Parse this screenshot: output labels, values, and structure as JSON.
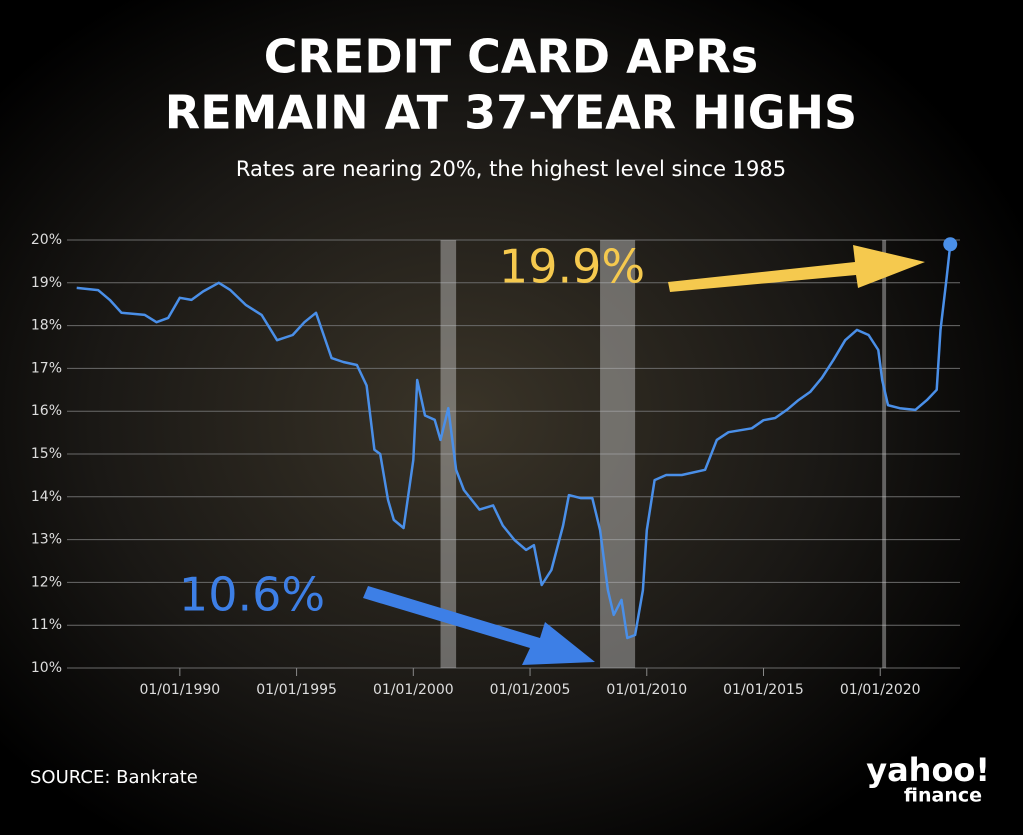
{
  "chart_data": {
    "type": "line",
    "title": [
      "CREDIT CARD APRs",
      "REMAIN AT 37-YEAR HIGHS"
    ],
    "subtitle": "Rates are nearing 20%, the highest level since 1985",
    "source": "SOURCE: Bankrate",
    "logo": [
      "yahoo!",
      "finance"
    ],
    "annotations": [
      {
        "text": "19.9%",
        "color": "#f5c94e"
      },
      {
        "text": "10.6%",
        "color": "#3d7fe6"
      }
    ],
    "x": [
      "1985-08-01",
      "1986-07-01",
      "1987-01-01",
      "1987-07-01",
      "1988-07-01",
      "1989-01-01",
      "1989-07-01",
      "1990-01-01",
      "1990-07-01",
      "1991-01-01",
      "1991-09-01",
      "1992-03-01",
      "1992-11-01",
      "1993-07-01",
      "1994-03-01",
      "1994-11-01",
      "1995-05-01",
      "1995-11-01",
      "1996-02-01",
      "1996-07-01",
      "1997-01-01",
      "1997-08-01",
      "1998-01-01",
      "1998-05-01",
      "1998-08-01",
      "1998-12-01",
      "1999-03-01",
      "1999-08-01",
      "2000-01-01",
      "2000-03-01",
      "2000-07-01",
      "2000-12-01",
      "2001-03-01",
      "2001-07-01",
      "2001-11-01",
      "2002-03-01",
      "2002-11-01",
      "2003-06-01",
      "2003-11-01",
      "2004-05-01",
      "2004-11-01",
      "2005-03-01",
      "2005-07-01",
      "2005-12-01",
      "2006-06-01",
      "2006-09-01",
      "2007-03-01",
      "2007-09-01",
      "2008-01-01",
      "2008-05-01",
      "2008-08-01",
      "2008-12-01",
      "2009-03-01",
      "2009-07-01",
      "2009-11-01",
      "2010-01-01",
      "2010-05-01",
      "2010-11-01",
      "2011-07-01",
      "2012-07-01",
      "2013-01-01",
      "2013-07-01",
      "2014-07-01",
      "2015-01-01",
      "2015-07-01",
      "2016-01-01",
      "2016-07-01",
      "2017-01-01",
      "2017-07-01",
      "2018-01-01",
      "2018-07-01",
      "2019-01-01",
      "2019-07-01",
      "2019-12-01",
      "2020-02-01",
      "2020-05-01",
      "2020-11-01",
      "2021-07-01",
      "2022-01-01",
      "2022-06-01",
      "2022-08-01",
      "2022-11-01",
      "2023-01-01"
    ],
    "series": [
      {
        "color": "#4a8fe8",
        "values": [
          18.88,
          18.83,
          18.6,
          18.3,
          18.25,
          18.08,
          18.18,
          18.65,
          18.6,
          18.8,
          19.0,
          18.83,
          18.48,
          18.25,
          17.66,
          17.78,
          18.08,
          18.3,
          17.9,
          17.24,
          17.15,
          17.08,
          16.6,
          15.1,
          15.0,
          13.93,
          13.46,
          13.27,
          14.86,
          16.73,
          15.9,
          15.8,
          15.33,
          16.07,
          14.63,
          14.16,
          13.7,
          13.8,
          13.33,
          12.99,
          12.76,
          12.87,
          11.94,
          12.29,
          13.33,
          14.04,
          13.97,
          13.97,
          13.22,
          11.82,
          11.24,
          11.59,
          10.7,
          10.77,
          11.82,
          13.22,
          14.39,
          14.51,
          14.51,
          14.63,
          15.33,
          15.51,
          15.6,
          15.79,
          15.84,
          16.03,
          16.26,
          16.45,
          16.78,
          17.2,
          17.66,
          17.9,
          17.78,
          17.43,
          16.73,
          16.14,
          16.07,
          16.03,
          16.26,
          16.5,
          17.9,
          19.07,
          19.9
        ]
      }
    ],
    "bands": [
      {
        "start": "2001-03-01",
        "end": "2001-11-01"
      },
      {
        "start": "2008-01-01",
        "end": "2009-07-01"
      },
      {
        "start": "2020-02-01",
        "end": "2020-04-01"
      }
    ],
    "xlim": [
      "1985-03-01",
      "2023-06-01"
    ],
    "xticks": [
      {
        "value": "1990-01-01",
        "label": "01/01/1990"
      },
      {
        "value": "1995-01-01",
        "label": "01/01/1995"
      },
      {
        "value": "2000-01-01",
        "label": "01/01/2000"
      },
      {
        "value": "2005-01-01",
        "label": "01/01/2005"
      },
      {
        "value": "2010-01-01",
        "label": "01/01/2010"
      },
      {
        "value": "2015-01-01",
        "label": "01/01/2015"
      },
      {
        "value": "2020-01-01",
        "label": "01/01/2020"
      }
    ],
    "ylim": [
      10,
      20
    ],
    "yticks": [
      {
        "value": 10,
        "label": "10%"
      },
      {
        "value": 11,
        "label": "11%"
      },
      {
        "value": 12,
        "label": "12%"
      },
      {
        "value": 13,
        "label": "13%"
      },
      {
        "value": 14,
        "label": "14%"
      },
      {
        "value": 15,
        "label": "15%"
      },
      {
        "value": 16,
        "label": "16%"
      },
      {
        "value": 17,
        "label": "17%"
      },
      {
        "value": 18,
        "label": "18%"
      },
      {
        "value": 19,
        "label": "19%"
      },
      {
        "value": 20,
        "label": "20%"
      }
    ],
    "grid": true
  }
}
